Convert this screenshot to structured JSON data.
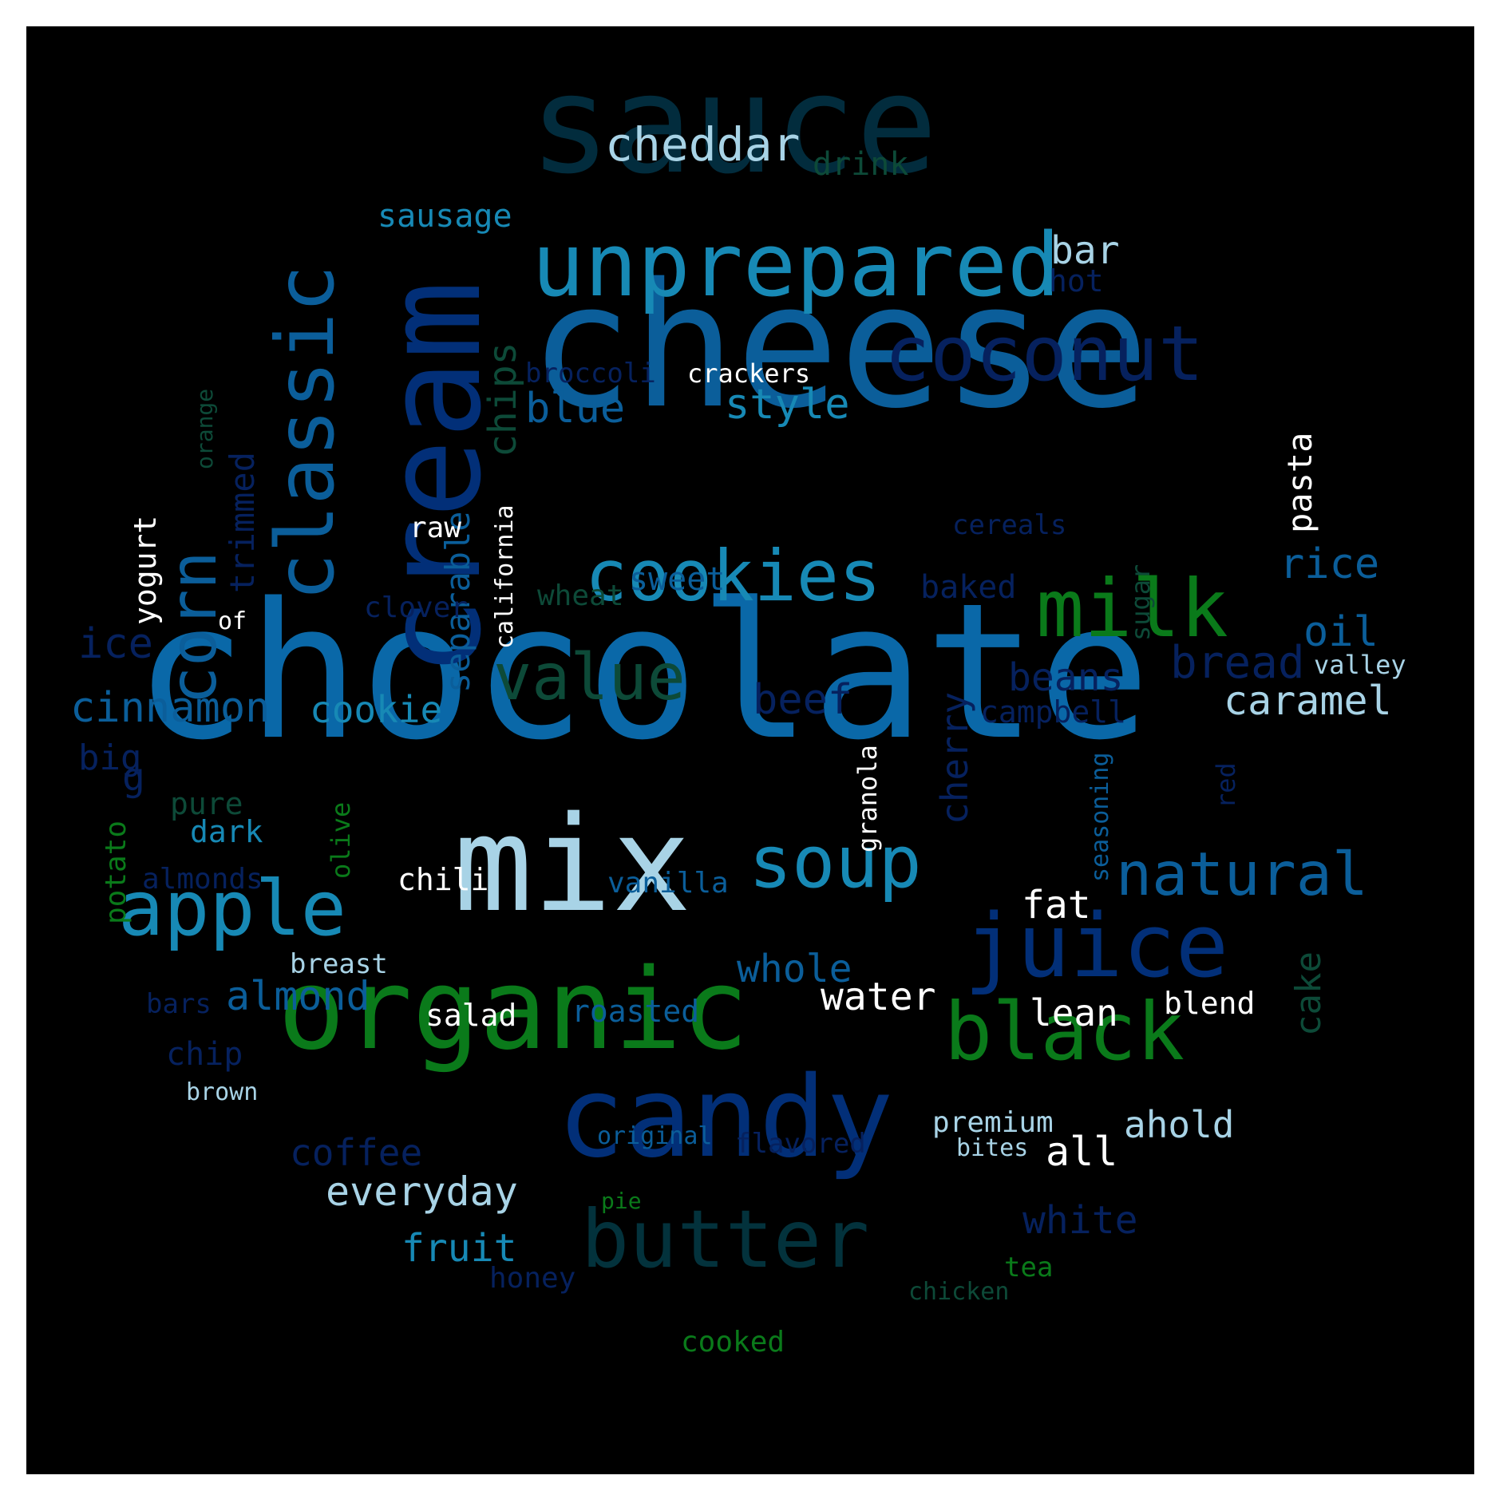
{
  "background": "#000000",
  "colors": {
    "dark_teal": "#022c3d",
    "blue": "#0a68a8",
    "mid_blue": "#0b5e9a",
    "deep_blue": "#022f78",
    "navy": "#06215e",
    "cyan": "#1789b5",
    "light_blue": "#a8d3e6",
    "green": "#0a7a1a",
    "dark_green": "#0d4a38",
    "white": "#ffffff"
  },
  "words": [
    {
      "text": "chocolate",
      "color": "#0a68a8"
    },
    {
      "text": "cheese",
      "color": "#0b5e9a"
    },
    {
      "text": "sauce",
      "color": "#022c3d"
    },
    {
      "text": "cream",
      "color": "#022f78"
    },
    {
      "text": "mix",
      "color": "#a8d3e6"
    },
    {
      "text": "organic",
      "color": "#0a7a1a"
    },
    {
      "text": "candy",
      "color": "#022f78"
    },
    {
      "text": "unprepared",
      "color": "#1789b5"
    },
    {
      "text": "classic",
      "color": "#0b5e9a"
    },
    {
      "text": "coconut",
      "color": "#06215e"
    },
    {
      "text": "cookies",
      "color": "#1789b5"
    },
    {
      "text": "milk",
      "color": "#0a7a1a"
    },
    {
      "text": "juice",
      "color": "#022f78"
    },
    {
      "text": "black",
      "color": "#0a7a1a"
    },
    {
      "text": "butter",
      "color": "#03323c"
    },
    {
      "text": "apple",
      "color": "#1789b5"
    },
    {
      "text": "soup",
      "color": "#1789b5"
    },
    {
      "text": "corn",
      "color": "#0b5e9a"
    },
    {
      "text": "value",
      "color": "#0d4a38"
    },
    {
      "text": "natural",
      "color": "#0b5e9a"
    },
    {
      "text": "cheddar",
      "color": "#a8d3e6"
    },
    {
      "text": "style",
      "color": "#1789b5"
    },
    {
      "text": "blue",
      "color": "#0b5e9a"
    },
    {
      "text": "chips",
      "color": "#0d4a38"
    },
    {
      "text": "bar",
      "color": "#a8d3e6"
    },
    {
      "text": "sausage",
      "color": "#1789b5"
    },
    {
      "text": "drink",
      "color": "#0d4a38"
    },
    {
      "text": "hot",
      "color": "#06215e"
    },
    {
      "text": "broccoli",
      "color": "#06215e"
    },
    {
      "text": "crackers",
      "color": "#ffffff"
    },
    {
      "text": "orange",
      "color": "#0d4a38"
    },
    {
      "text": "trimmed",
      "color": "#06215e"
    },
    {
      "text": "separable",
      "color": "#0b5e9a"
    },
    {
      "text": "california",
      "color": "#ffffff"
    },
    {
      "text": "raw",
      "color": "#ffffff"
    },
    {
      "text": "cereals",
      "color": "#06215e"
    },
    {
      "text": "pasta",
      "color": "#ffffff"
    },
    {
      "text": "rice",
      "color": "#0b5e9a"
    },
    {
      "text": "yogurt",
      "color": "#ffffff"
    },
    {
      "text": "sweet",
      "color": "#0b5e9a"
    },
    {
      "text": "wheat",
      "color": "#0d4a38"
    },
    {
      "text": "clover",
      "color": "#06215e"
    },
    {
      "text": "baked",
      "color": "#06215e"
    },
    {
      "text": "sugar",
      "color": "#0d4a38"
    },
    {
      "text": "oil",
      "color": "#0b5e9a"
    },
    {
      "text": "of",
      "color": "#ffffff"
    },
    {
      "text": "ice",
      "color": "#06215e"
    },
    {
      "text": "beans",
      "color": "#06215e"
    },
    {
      "text": "bread",
      "color": "#06215e"
    },
    {
      "text": "valley",
      "color": "#a8d3e6"
    },
    {
      "text": "cinnamon",
      "color": "#0b5e9a"
    },
    {
      "text": "cookie",
      "color": "#1789b5"
    },
    {
      "text": "beef",
      "color": "#06215e"
    },
    {
      "text": "cherry",
      "color": "#06215e"
    },
    {
      "text": "campbell",
      "color": "#06215e"
    },
    {
      "text": "caramel",
      "color": "#a8d3e6"
    },
    {
      "text": "big",
      "color": "#06215e"
    },
    {
      "text": "g",
      "color": "#06215e"
    },
    {
      "text": "pure",
      "color": "#0d4a38"
    },
    {
      "text": "olive",
      "color": "#0a7a1a"
    },
    {
      "text": "granola",
      "color": "#ffffff"
    },
    {
      "text": "seasoning",
      "color": "#0b5e9a"
    },
    {
      "text": "red",
      "color": "#06215e"
    },
    {
      "text": "dark",
      "color": "#1789b5"
    },
    {
      "text": "potato",
      "color": "#0a7a1a"
    },
    {
      "text": "almonds",
      "color": "#06215e"
    },
    {
      "text": "chili",
      "color": "#ffffff"
    },
    {
      "text": "vanilla",
      "color": "#0b5e9a"
    },
    {
      "text": "fat",
      "color": "#ffffff"
    },
    {
      "text": "whole",
      "color": "#0b5e9a"
    },
    {
      "text": "breast",
      "color": "#a8d3e6"
    },
    {
      "text": "almond",
      "color": "#0b5e9a"
    },
    {
      "text": "water",
      "color": "#ffffff"
    },
    {
      "text": "cake",
      "color": "#0d4a38"
    },
    {
      "text": "lean",
      "color": "#ffffff"
    },
    {
      "text": "blend",
      "color": "#ffffff"
    },
    {
      "text": "bars",
      "color": "#06215e"
    },
    {
      "text": "salad",
      "color": "#ffffff"
    },
    {
      "text": "roasted",
      "color": "#0b5e9a"
    },
    {
      "text": "chip",
      "color": "#06215e"
    },
    {
      "text": "brown",
      "color": "#a8d3e6"
    },
    {
      "text": "premium",
      "color": "#a8d3e6"
    },
    {
      "text": "ahold",
      "color": "#a8d3e6"
    },
    {
      "text": "bites",
      "color": "#a8d3e6"
    },
    {
      "text": "coffee",
      "color": "#06215e"
    },
    {
      "text": "original",
      "color": "#0b5e9a"
    },
    {
      "text": "flavored",
      "color": "#06215e"
    },
    {
      "text": "all",
      "color": "#ffffff"
    },
    {
      "text": "everyday",
      "color": "#a8d3e6"
    },
    {
      "text": "pie",
      "color": "#0a7a1a"
    },
    {
      "text": "white",
      "color": "#06215e"
    },
    {
      "text": "fruit",
      "color": "#1789b5"
    },
    {
      "text": "tea",
      "color": "#0a7a1a"
    },
    {
      "text": "honey",
      "color": "#06215e"
    },
    {
      "text": "chicken",
      "color": "#0d4a38"
    },
    {
      "text": "cooked",
      "color": "#0a7a1a"
    }
  ]
}
